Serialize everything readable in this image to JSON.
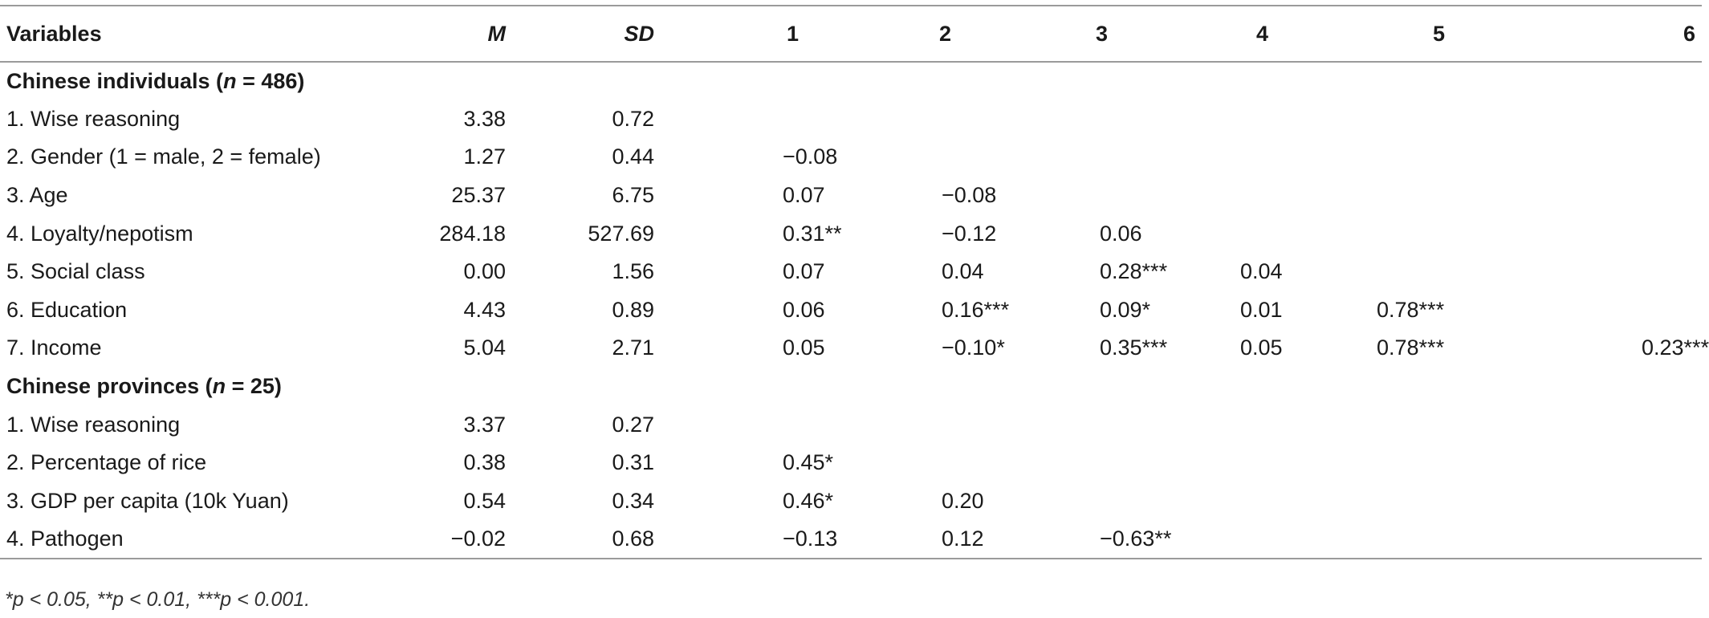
{
  "table": {
    "headers": [
      "Variables",
      "M",
      "SD",
      "1",
      "2",
      "3",
      "4",
      "5",
      "6"
    ],
    "sections": [
      {
        "title_prefix": "Chinese individuals (",
        "title_n": "n",
        "title_suffix": " = 486)",
        "rows": [
          {
            "label": "1. Wise reasoning",
            "M": "3.38",
            "SD": "0.72",
            "c1": "",
            "c2": "",
            "c3": "",
            "c4": "",
            "c5": "",
            "c6": ""
          },
          {
            "label": "2. Gender (1 = male, 2 = female)",
            "M": "1.27",
            "SD": "0.44",
            "c1": "−0.08",
            "c2": "",
            "c3": "",
            "c4": "",
            "c5": "",
            "c6": ""
          },
          {
            "label": "3. Age",
            "M": "25.37",
            "SD": "6.75",
            "c1": "0.07",
            "c2": "−0.08",
            "c3": "",
            "c4": "",
            "c5": "",
            "c6": ""
          },
          {
            "label": "4. Loyalty/nepotism",
            "M": "284.18",
            "SD": "527.69",
            "c1": "0.31**",
            "c2": "−0.12",
            "c3": "0.06",
            "c4": "",
            "c5": "",
            "c6": ""
          },
          {
            "label": "5. Social class",
            "M": "0.00",
            "SD": "1.56",
            "c1": "0.07",
            "c2": "0.04",
            "c3": "0.28***",
            "c4": "0.04",
            "c5": "",
            "c6": ""
          },
          {
            "label": "6. Education",
            "M": "4.43",
            "SD": "0.89",
            "c1": "0.06",
            "c2": "0.16***",
            "c3": "0.09*",
            "c4": "0.01",
            "c5": "0.78***",
            "c6": ""
          },
          {
            "label": "7. Income",
            "M": "5.04",
            "SD": "2.71",
            "c1": "0.05",
            "c2": "−0.10*",
            "c3": "0.35***",
            "c4": "0.05",
            "c5": "0.78***",
            "c6": "0.23***"
          }
        ]
      },
      {
        "title_prefix": "Chinese provinces (",
        "title_n": "n",
        "title_suffix": " = 25)",
        "rows": [
          {
            "label": "1. Wise reasoning",
            "M": "3.37",
            "SD": "0.27",
            "c1": "",
            "c2": "",
            "c3": "",
            "c4": "",
            "c5": "",
            "c6": ""
          },
          {
            "label": "2. Percentage of rice",
            "M": "0.38",
            "SD": "0.31",
            "c1": "0.45*",
            "c2": "",
            "c3": "",
            "c4": "",
            "c5": "",
            "c6": ""
          },
          {
            "label": "3. GDP per capita (10k Yuan)",
            "M": "0.54",
            "SD": "0.34",
            "c1": "0.46*",
            "c2": "0.20",
            "c3": "",
            "c4": "",
            "c5": "",
            "c6": ""
          },
          {
            "label": "4. Pathogen",
            "M": "−0.02",
            "SD": "0.68",
            "c1": "−0.13",
            "c2": "0.12",
            "c3": "−0.63**",
            "c4": "",
            "c5": "",
            "c6": ""
          }
        ]
      }
    ],
    "note": "*p < 0.05, **p < 0.01, ***p < 0.001."
  }
}
